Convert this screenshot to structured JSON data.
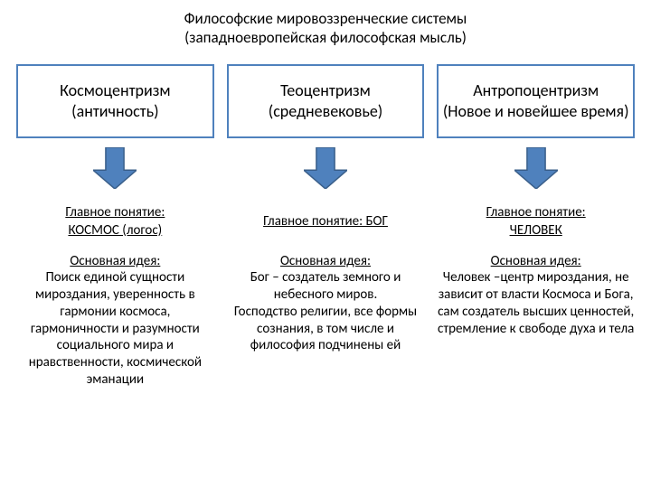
{
  "title": {
    "line1": "Философские мировоззренческие системы",
    "line2": "(западноевропейская философская мысль)"
  },
  "arrow": {
    "fill": "#4f81bd",
    "stroke": "#3a5f8a",
    "width": 48,
    "height": 46
  },
  "box_border_color": "#4f81bd",
  "columns": [
    {
      "box_line1": "Космоцентризм",
      "box_line2": "(античность)",
      "concept_label": "Главное понятие:",
      "concept_value": "КОСМОС (логос)",
      "idea_label": "Основная идея:",
      "idea_text": "Поиск единой сущности мироздания, уверенность в гармонии космоса, гармоничности и разумности социального мира и нравственности, космической эманации"
    },
    {
      "box_line1": "Теоцентризм",
      "box_line2": "(средневековье)",
      "concept_label": "Главное понятие: БОГ",
      "concept_value": "",
      "idea_label": "Основная идея:",
      "idea_text": "Бог – создатель земного и небесного миров.\nГосподство религии, все формы сознания, в том числе и философия подчинены ей"
    },
    {
      "box_line1": "Антропоцентризм",
      "box_line2": "(Новое и новейшее время)",
      "concept_label": "Главное понятие:",
      "concept_value": "ЧЕЛОВЕК",
      "idea_label": "Основная идея:",
      "idea_text": "Человек –центр мироздания, не зависит от власти Космоса и Бога, сам создатель высших ценностей, стремление к свободе духа и тела"
    }
  ]
}
